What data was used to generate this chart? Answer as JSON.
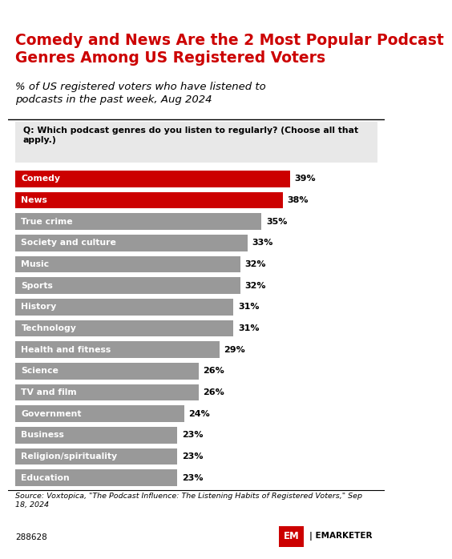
{
  "title": "Comedy and News Are the 2 Most Popular Podcast\nGenres Among US Registered Voters",
  "subtitle": "% of US registered voters who have listened to\npodcasts in the past week, Aug 2024",
  "question": "Q: Which podcast genres do you listen to regularly? (Choose all that\napply.)",
  "categories": [
    "Comedy",
    "News",
    "True crime",
    "Society and culture",
    "Music",
    "Sports",
    "History",
    "Technology",
    "Health and fitness",
    "Science",
    "TV and film",
    "Government",
    "Business",
    "Religion/spirituality",
    "Education"
  ],
  "values": [
    39,
    38,
    35,
    33,
    32,
    32,
    31,
    31,
    29,
    26,
    26,
    24,
    23,
    23,
    23
  ],
  "bar_colors": [
    "#cc0000",
    "#cc0000",
    "#999999",
    "#999999",
    "#999999",
    "#999999",
    "#999999",
    "#999999",
    "#999999",
    "#999999",
    "#999999",
    "#999999",
    "#999999",
    "#999999",
    "#999999"
  ],
  "label_colors": [
    "#ffffff",
    "#ffffff",
    "#ffffff",
    "#ffffff",
    "#ffffff",
    "#ffffff",
    "#ffffff",
    "#ffffff",
    "#ffffff",
    "#ffffff",
    "#ffffff",
    "#ffffff",
    "#ffffff",
    "#ffffff",
    "#ffffff"
  ],
  "source_text": "Source: Voxtopica, \"The Podcast Influence: The Listening Habits of Registered Voters,\" Sep\n18, 2024",
  "footer_id": "288628",
  "bg_color": "#ffffff",
  "question_bg": "#e8e8e8",
  "title_color": "#cc0000",
  "subtitle_color": "#000000",
  "xlim": [
    0,
    45
  ]
}
